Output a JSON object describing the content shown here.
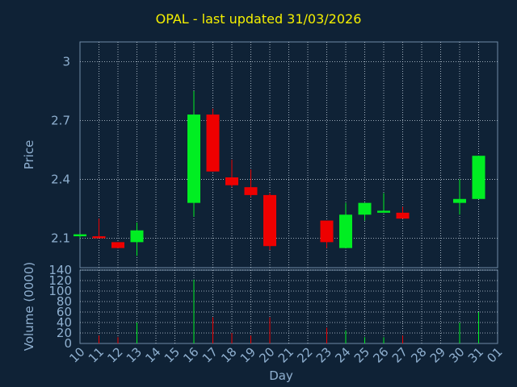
{
  "chart_data": {
    "type": "candlestick",
    "title": "OPAL - last updated 31/03/2026",
    "price_panel": {
      "ylabel": "Price",
      "yticks": [
        "3",
        "2.7",
        "2.4",
        "2.1"
      ],
      "ylim": [
        1.95,
        3.1
      ]
    },
    "volume_panel": {
      "ylabel": "Volume (0000)",
      "yticks": [
        "140",
        "120",
        "100",
        "80",
        "60",
        "40",
        "20",
        "0"
      ],
      "ylim": [
        0,
        140
      ]
    },
    "xlabel": "Day",
    "x_tick_labels": [
      "10",
      "11",
      "12",
      "13",
      "14",
      "15",
      "16",
      "17",
      "18",
      "19",
      "20",
      "21",
      "22",
      "23",
      "24",
      "25",
      "26",
      "27",
      "28",
      "29",
      "30",
      "31",
      "01"
    ],
    "colors": {
      "up": "#00ee22",
      "down": "#ee0000",
      "title": "#f5f000",
      "axis_text": "#8fb0d0",
      "background": "#0f2236"
    },
    "candles": [
      {
        "day": "10",
        "open": 2.11,
        "high": 2.12,
        "low": 2.1,
        "close": 2.12,
        "volume": 0
      },
      {
        "day": "11",
        "open": 2.11,
        "high": 2.2,
        "low": 2.1,
        "close": 2.1,
        "volume": 15
      },
      {
        "day": "12",
        "open": 2.08,
        "high": 2.08,
        "low": 2.05,
        "close": 2.05,
        "volume": 12
      },
      {
        "day": "13",
        "open": 2.08,
        "high": 2.18,
        "low": 2.01,
        "close": 2.14,
        "volume": 40
      },
      {
        "day": "16",
        "open": 2.28,
        "high": 2.85,
        "low": 2.21,
        "close": 2.73,
        "volume": 122
      },
      {
        "day": "17",
        "open": 2.73,
        "high": 2.76,
        "low": 2.44,
        "close": 2.44,
        "volume": 50
      },
      {
        "day": "18",
        "open": 2.41,
        "high": 2.5,
        "low": 2.36,
        "close": 2.37,
        "volume": 20
      },
      {
        "day": "19",
        "open": 2.36,
        "high": 2.45,
        "low": 2.31,
        "close": 2.32,
        "volume": 15
      },
      {
        "day": "20",
        "open": 2.32,
        "high": 2.33,
        "low": 2.04,
        "close": 2.06,
        "volume": 50
      },
      {
        "day": "23",
        "open": 2.19,
        "high": 2.19,
        "low": 2.05,
        "close": 2.08,
        "volume": 30
      },
      {
        "day": "24",
        "open": 2.05,
        "high": 2.28,
        "low": 2.05,
        "close": 2.22,
        "volume": 25
      },
      {
        "day": "25",
        "open": 2.22,
        "high": 2.28,
        "low": 2.19,
        "close": 2.28,
        "volume": 12
      },
      {
        "day": "26",
        "open": 2.23,
        "high": 2.33,
        "low": 2.23,
        "close": 2.24,
        "volume": 12
      },
      {
        "day": "27",
        "open": 2.23,
        "high": 2.26,
        "low": 2.2,
        "close": 2.2,
        "volume": 15
      },
      {
        "day": "30",
        "open": 2.28,
        "high": 2.4,
        "low": 2.22,
        "close": 2.3,
        "volume": 40
      },
      {
        "day": "31",
        "open": 2.3,
        "high": 2.52,
        "low": 2.3,
        "close": 2.52,
        "volume": 60
      }
    ]
  }
}
